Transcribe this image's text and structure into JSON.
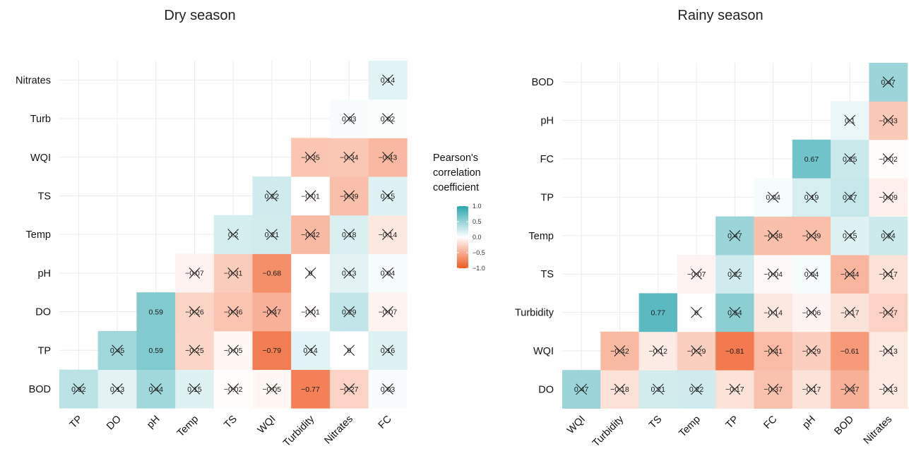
{
  "legend": {
    "title_lines": [
      "Pearson's",
      "correlation",
      "coefficient"
    ],
    "ticks": [
      "1.0",
      "0.5",
      "0.0",
      "−0.5",
      "−1.0"
    ],
    "tick_values": [
      1.0,
      0.5,
      0.0,
      -0.5,
      -1.0
    ]
  },
  "colors": {
    "positive": "#2aa6ae",
    "neutral": "#ffffff",
    "negative": "#f05a24"
  },
  "chart_data": [
    {
      "type": "heatmap",
      "title": "Dry season",
      "x_categories": [
        "TP",
        "DO",
        "pH",
        "Temp",
        "TS",
        "WQI",
        "Turbidity",
        "Nitrates",
        "FC"
      ],
      "y_categories": [
        "BOD",
        "TP",
        "DO",
        "pH",
        "Temp",
        "TS",
        "WQI",
        "Turb",
        "Nitrates"
      ],
      "value_range": [
        -1,
        1
      ],
      "cells": [
        {
          "x": 0,
          "y": 0,
          "value": 0.32,
          "label": "0.32",
          "crossed": true
        },
        {
          "x": 1,
          "y": 0,
          "value": 0.13,
          "label": "0.13",
          "crossed": true
        },
        {
          "x": 2,
          "y": 0,
          "value": 0.44,
          "label": "0.44",
          "crossed": true
        },
        {
          "x": 3,
          "y": 0,
          "value": 0.15,
          "label": "0.15",
          "crossed": true
        },
        {
          "x": 4,
          "y": 0,
          "value": -0.02,
          "label": "−0.02",
          "crossed": true
        },
        {
          "x": 5,
          "y": 0,
          "value": -0.05,
          "label": "−0.05",
          "crossed": true
        },
        {
          "x": 6,
          "y": 0,
          "value": -0.77,
          "label": "−0.77",
          "crossed": false
        },
        {
          "x": 7,
          "y": 0,
          "value": -0.27,
          "label": "−0.27",
          "crossed": true
        },
        {
          "x": 8,
          "y": 0,
          "value": 0.03,
          "label": "0.03",
          "crossed": true
        },
        {
          "x": 1,
          "y": 1,
          "value": 0.45,
          "label": "0.45",
          "crossed": true
        },
        {
          "x": 2,
          "y": 1,
          "value": 0.59,
          "label": "0.59",
          "crossed": false
        },
        {
          "x": 3,
          "y": 1,
          "value": -0.25,
          "label": "−0.25",
          "crossed": true
        },
        {
          "x": 4,
          "y": 1,
          "value": -0.05,
          "label": "−0.05",
          "crossed": true
        },
        {
          "x": 5,
          "y": 1,
          "value": -0.79,
          "label": "−0.79",
          "crossed": false
        },
        {
          "x": 6,
          "y": 1,
          "value": 0.14,
          "label": "0.14",
          "crossed": true
        },
        {
          "x": 7,
          "y": 1,
          "value": 0.0,
          "label": "0",
          "crossed": true
        },
        {
          "x": 8,
          "y": 1,
          "value": 0.16,
          "label": "0.16",
          "crossed": true
        },
        {
          "x": 2,
          "y": 2,
          "value": 0.59,
          "label": "0.59",
          "crossed": false
        },
        {
          "x": 3,
          "y": 2,
          "value": -0.26,
          "label": "−0.26",
          "crossed": true
        },
        {
          "x": 4,
          "y": 2,
          "value": -0.36,
          "label": "−0.36",
          "crossed": true
        },
        {
          "x": 5,
          "y": 2,
          "value": -0.47,
          "label": "−0.47",
          "crossed": true
        },
        {
          "x": 6,
          "y": 2,
          "value": -0.01,
          "label": "−0.01",
          "crossed": true
        },
        {
          "x": 7,
          "y": 2,
          "value": 0.29,
          "label": "0.29",
          "crossed": true
        },
        {
          "x": 8,
          "y": 2,
          "value": -0.07,
          "label": "−0.07",
          "crossed": true
        },
        {
          "x": 3,
          "y": 3,
          "value": -0.07,
          "label": "−0.07",
          "crossed": true
        },
        {
          "x": 4,
          "y": 3,
          "value": -0.31,
          "label": "−0.31",
          "crossed": true
        },
        {
          "x": 5,
          "y": 3,
          "value": -0.68,
          "label": "−0.68",
          "crossed": false
        },
        {
          "x": 6,
          "y": 3,
          "value": 0.0,
          "label": "0",
          "crossed": true
        },
        {
          "x": 7,
          "y": 3,
          "value": 0.13,
          "label": "0.13",
          "crossed": true
        },
        {
          "x": 8,
          "y": 3,
          "value": 0.04,
          "label": "0.04",
          "crossed": true
        },
        {
          "x": 4,
          "y": 4,
          "value": 0.2,
          "label": "0.2",
          "crossed": true
        },
        {
          "x": 5,
          "y": 4,
          "value": 0.21,
          "label": "0.21",
          "crossed": true
        },
        {
          "x": 6,
          "y": 4,
          "value": -0.42,
          "label": "−0.42",
          "crossed": true
        },
        {
          "x": 7,
          "y": 4,
          "value": 0.18,
          "label": "0.18",
          "crossed": true
        },
        {
          "x": 8,
          "y": 4,
          "value": -0.14,
          "label": "−0.14",
          "crossed": true
        },
        {
          "x": 5,
          "y": 5,
          "value": 0.22,
          "label": "0.22",
          "crossed": true
        },
        {
          "x": 6,
          "y": 5,
          "value": -0.01,
          "label": "−0.01",
          "crossed": true
        },
        {
          "x": 7,
          "y": 5,
          "value": -0.39,
          "label": "−0.39",
          "crossed": true
        },
        {
          "x": 8,
          "y": 5,
          "value": 0.15,
          "label": "0.15",
          "crossed": true
        },
        {
          "x": 6,
          "y": 6,
          "value": -0.35,
          "label": "−0.35",
          "crossed": true
        },
        {
          "x": 7,
          "y": 6,
          "value": -0.34,
          "label": "−0.34",
          "crossed": true
        },
        {
          "x": 8,
          "y": 6,
          "value": -0.43,
          "label": "−0.43",
          "crossed": true
        },
        {
          "x": 7,
          "y": 7,
          "value": 0.03,
          "label": "0.03",
          "crossed": true
        },
        {
          "x": 8,
          "y": 7,
          "value": 0.02,
          "label": "0.02",
          "crossed": true
        },
        {
          "x": 8,
          "y": 8,
          "value": 0.14,
          "label": "0.14",
          "crossed": true
        }
      ]
    },
    {
      "type": "heatmap",
      "title": "Rainy season",
      "x_categories": [
        "WQI",
        "Turbidity",
        "TS",
        "Temp",
        "TP",
        "FC",
        "pH",
        "BOD",
        "Nitrates"
      ],
      "y_categories": [
        "DO",
        "WQI",
        "Turbidity",
        "TS",
        "Temp",
        "TP",
        "FC",
        "pH",
        "BOD"
      ],
      "value_range": [
        -1,
        1
      ],
      "cells": [
        {
          "x": 0,
          "y": 0,
          "value": 0.47,
          "label": "0.47",
          "crossed": true
        },
        {
          "x": 1,
          "y": 0,
          "value": -0.18,
          "label": "−0.18",
          "crossed": true
        },
        {
          "x": 2,
          "y": 0,
          "value": 0.21,
          "label": "0.21",
          "crossed": true
        },
        {
          "x": 3,
          "y": 0,
          "value": 0.22,
          "label": "0.22",
          "crossed": true
        },
        {
          "x": 4,
          "y": 0,
          "value": -0.17,
          "label": "−0.17",
          "crossed": true
        },
        {
          "x": 5,
          "y": 0,
          "value": -0.37,
          "label": "−0.37",
          "crossed": true
        },
        {
          "x": 6,
          "y": 0,
          "value": -0.17,
          "label": "−0.17",
          "crossed": true
        },
        {
          "x": 7,
          "y": 0,
          "value": -0.47,
          "label": "−0.47",
          "crossed": true
        },
        {
          "x": 8,
          "y": 0,
          "value": -0.13,
          "label": "−0.13",
          "crossed": true
        },
        {
          "x": 1,
          "y": 1,
          "value": -0.42,
          "label": "−0.42",
          "crossed": true
        },
        {
          "x": 2,
          "y": 1,
          "value": -0.12,
          "label": "−0.12",
          "crossed": true
        },
        {
          "x": 3,
          "y": 1,
          "value": -0.29,
          "label": "−0.29",
          "crossed": true
        },
        {
          "x": 4,
          "y": 1,
          "value": -0.81,
          "label": "−0.81",
          "crossed": false
        },
        {
          "x": 5,
          "y": 1,
          "value": -0.41,
          "label": "−0.41",
          "crossed": true
        },
        {
          "x": 6,
          "y": 1,
          "value": -0.29,
          "label": "−0.29",
          "crossed": true
        },
        {
          "x": 7,
          "y": 1,
          "value": -0.61,
          "label": "−0.61",
          "crossed": false
        },
        {
          "x": 8,
          "y": 1,
          "value": -0.13,
          "label": "−0.13",
          "crossed": true
        },
        {
          "x": 2,
          "y": 2,
          "value": 0.77,
          "label": "0.77",
          "crossed": false
        },
        {
          "x": 3,
          "y": 2,
          "value": 0.0,
          "label": "0",
          "crossed": true
        },
        {
          "x": 4,
          "y": 2,
          "value": 0.54,
          "label": "0.54",
          "crossed": true
        },
        {
          "x": 5,
          "y": 2,
          "value": -0.14,
          "label": "−0.14",
          "crossed": true
        },
        {
          "x": 6,
          "y": 2,
          "value": -0.06,
          "label": "−0.06",
          "crossed": true
        },
        {
          "x": 7,
          "y": 2,
          "value": -0.17,
          "label": "−0.17",
          "crossed": true
        },
        {
          "x": 8,
          "y": 2,
          "value": -0.27,
          "label": "−0.27",
          "crossed": true
        },
        {
          "x": 3,
          "y": 3,
          "value": -0.07,
          "label": "−0.07",
          "crossed": true
        },
        {
          "x": 4,
          "y": 3,
          "value": 0.22,
          "label": "0.22",
          "crossed": true
        },
        {
          "x": 5,
          "y": 3,
          "value": -0.04,
          "label": "−0.04",
          "crossed": true
        },
        {
          "x": 6,
          "y": 3,
          "value": 0.04,
          "label": "0.04",
          "crossed": true
        },
        {
          "x": 7,
          "y": 3,
          "value": -0.44,
          "label": "−0.44",
          "crossed": true
        },
        {
          "x": 8,
          "y": 3,
          "value": -0.17,
          "label": "−0.17",
          "crossed": true
        },
        {
          "x": 4,
          "y": 4,
          "value": 0.47,
          "label": "0.47",
          "crossed": true
        },
        {
          "x": 5,
          "y": 4,
          "value": -0.38,
          "label": "−0.38",
          "crossed": true
        },
        {
          "x": 6,
          "y": 4,
          "value": -0.39,
          "label": "−0.39",
          "crossed": true
        },
        {
          "x": 7,
          "y": 4,
          "value": 0.15,
          "label": "0.15",
          "crossed": true
        },
        {
          "x": 8,
          "y": 4,
          "value": 0.24,
          "label": "0.24",
          "crossed": true
        },
        {
          "x": 5,
          "y": 5,
          "value": 0.04,
          "label": "0.04",
          "crossed": true
        },
        {
          "x": 6,
          "y": 5,
          "value": 0.19,
          "label": "0.19",
          "crossed": true
        },
        {
          "x": 7,
          "y": 5,
          "value": 0.27,
          "label": "0.27",
          "crossed": true
        },
        {
          "x": 8,
          "y": 5,
          "value": -0.09,
          "label": "−0.09",
          "crossed": true
        },
        {
          "x": 6,
          "y": 6,
          "value": 0.67,
          "label": "0.67",
          "crossed": false
        },
        {
          "x": 7,
          "y": 6,
          "value": 0.25,
          "label": "0.25",
          "crossed": true
        },
        {
          "x": 8,
          "y": 6,
          "value": -0.02,
          "label": "−0.02",
          "crossed": true
        },
        {
          "x": 7,
          "y": 7,
          "value": 0.1,
          "label": "0.1",
          "crossed": true
        },
        {
          "x": 8,
          "y": 7,
          "value": -0.33,
          "label": "−0.33",
          "crossed": true
        },
        {
          "x": 8,
          "y": 8,
          "value": 0.47,
          "label": "0.47",
          "crossed": true
        }
      ]
    }
  ]
}
